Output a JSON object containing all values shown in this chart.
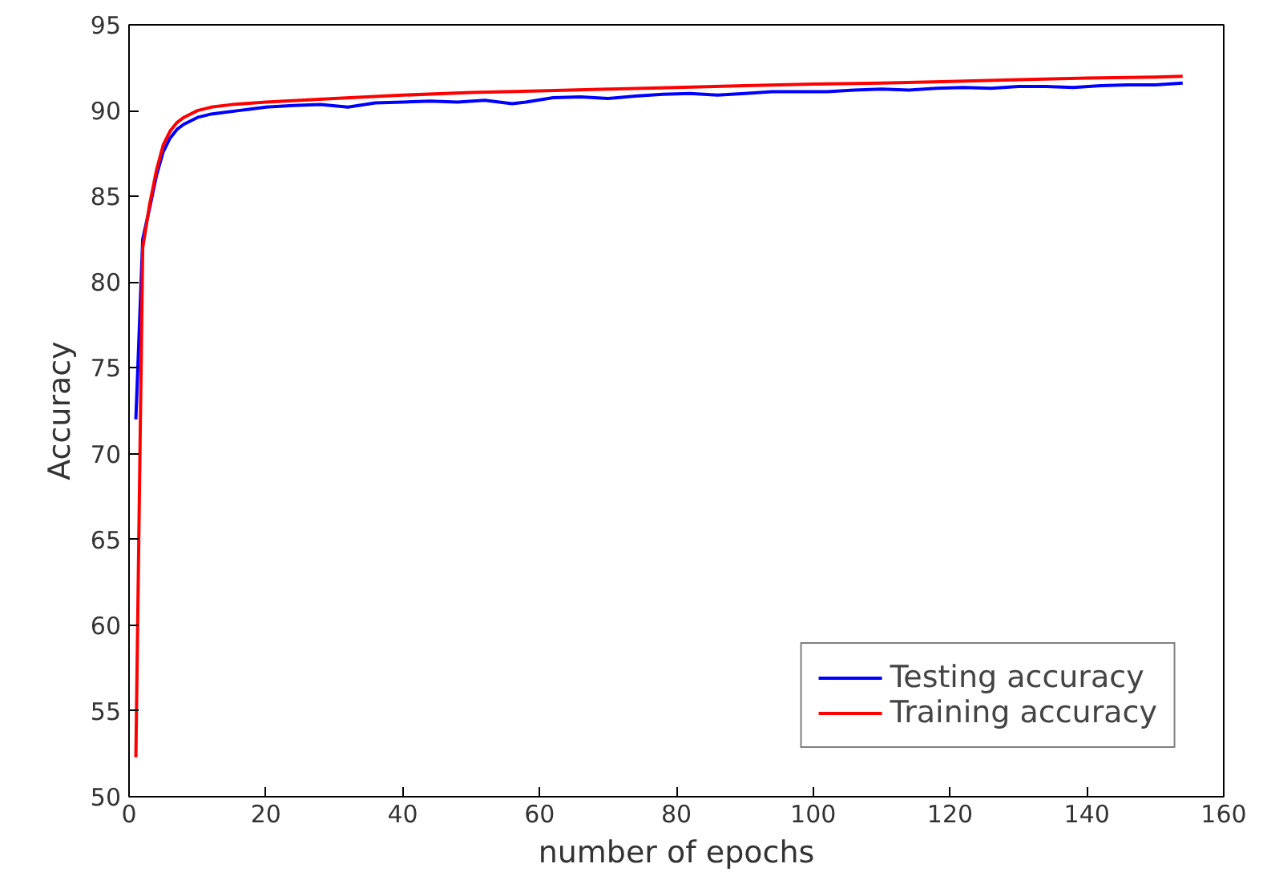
{
  "chart_data": {
    "type": "line",
    "xlabel": "number of epochs",
    "ylabel": "Accuracy",
    "xlim": [
      0,
      160
    ],
    "ylim": [
      50,
      95
    ],
    "xticks": [
      0,
      20,
      40,
      60,
      80,
      100,
      120,
      140,
      160
    ],
    "yticks": [
      50,
      55,
      60,
      65,
      70,
      75,
      80,
      85,
      90,
      95
    ],
    "grid": false,
    "legend": "bottom right",
    "line_style": "solid",
    "series": [
      {
        "name": "Testing accuracy",
        "color": "#0000ff",
        "x": [
          1,
          2,
          3,
          4,
          5,
          6,
          7,
          8,
          10,
          12,
          14,
          16,
          18,
          20,
          24,
          28,
          32,
          36,
          40,
          44,
          48,
          52,
          56,
          58,
          62,
          66,
          70,
          74,
          78,
          82,
          86,
          90,
          94,
          98,
          102,
          106,
          110,
          114,
          118,
          122,
          126,
          130,
          134,
          138,
          142,
          146,
          150,
          154
        ],
        "values": [
          72,
          82.5,
          84.3,
          86.2,
          87.6,
          88.4,
          88.9,
          89.2,
          89.6,
          89.8,
          89.9,
          90.0,
          90.1,
          90.2,
          90.3,
          90.35,
          90.2,
          90.45,
          90.5,
          90.55,
          90.5,
          90.6,
          90.4,
          90.5,
          90.75,
          90.8,
          90.7,
          90.85,
          90.95,
          91.0,
          90.9,
          91.0,
          91.1,
          91.1,
          91.1,
          91.2,
          91.25,
          91.2,
          91.3,
          91.35,
          91.3,
          91.4,
          91.4,
          91.35,
          91.45,
          91.5,
          91.5,
          91.6
        ]
      },
      {
        "name": "Training accuracy",
        "color": "#ff0000",
        "x": [
          1,
          2,
          3,
          4,
          5,
          6,
          7,
          8,
          10,
          12,
          15,
          20,
          25,
          30,
          40,
          50,
          60,
          70,
          80,
          90,
          100,
          110,
          120,
          130,
          140,
          150,
          154
        ],
        "values": [
          52.3,
          82,
          84.5,
          86.5,
          88,
          88.8,
          89.3,
          89.6,
          90.0,
          90.2,
          90.35,
          90.5,
          90.6,
          90.7,
          90.9,
          91.05,
          91.15,
          91.25,
          91.35,
          91.45,
          91.55,
          91.6,
          91.7,
          91.8,
          91.9,
          91.95,
          92.0
        ]
      }
    ]
  }
}
